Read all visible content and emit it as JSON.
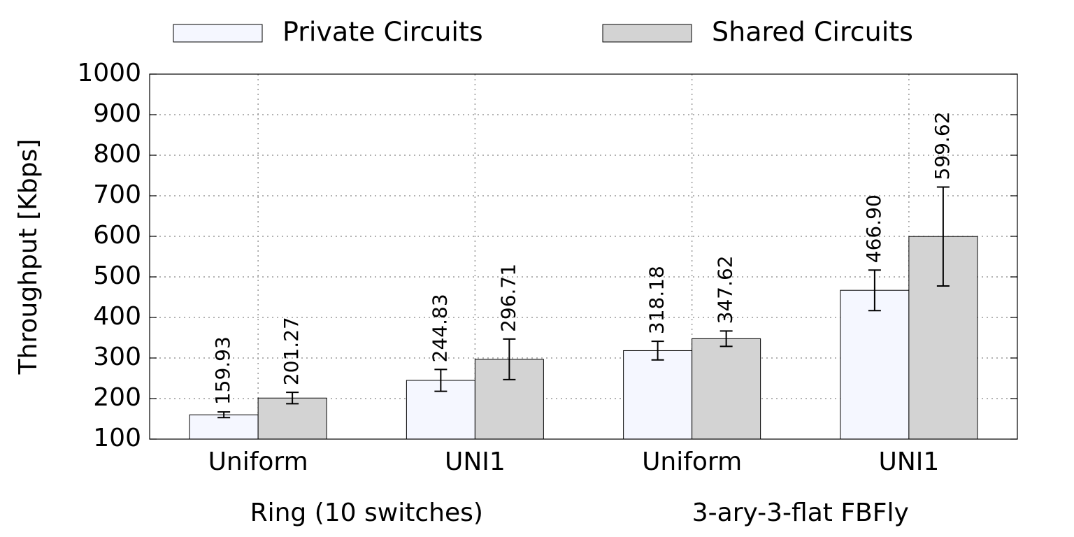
{
  "chart_data": {
    "type": "bar",
    "y_label": "Throughput [Kbps]",
    "categories": [
      "Uniform",
      "UNI1",
      "Uniform",
      "UNI1"
    ],
    "group_labels": [
      "Ring (10 switches)",
      "3-ary-3-flat FBFly"
    ],
    "series": [
      {
        "name": "Private Circuits",
        "color": "#f5f7ff",
        "values": [
          159.93,
          244.83,
          318.18,
          466.9
        ],
        "value_labels": [
          "159.93",
          "244.83",
          "318.18",
          "466.90"
        ],
        "errors": [
          7,
          27,
          23,
          50
        ]
      },
      {
        "name": "Shared Circuits",
        "color": "#d3d3d3",
        "values": [
          201.27,
          296.71,
          347.62,
          599.62
        ],
        "value_labels": [
          "201.27",
          "296.71",
          "347.62",
          "599.62"
        ],
        "errors": [
          14,
          50,
          19,
          122
        ]
      }
    ],
    "ylim": [
      100,
      1000
    ],
    "yticks": [
      100,
      200,
      300,
      400,
      500,
      600,
      700,
      800,
      900,
      1000
    ],
    "grid": true
  }
}
